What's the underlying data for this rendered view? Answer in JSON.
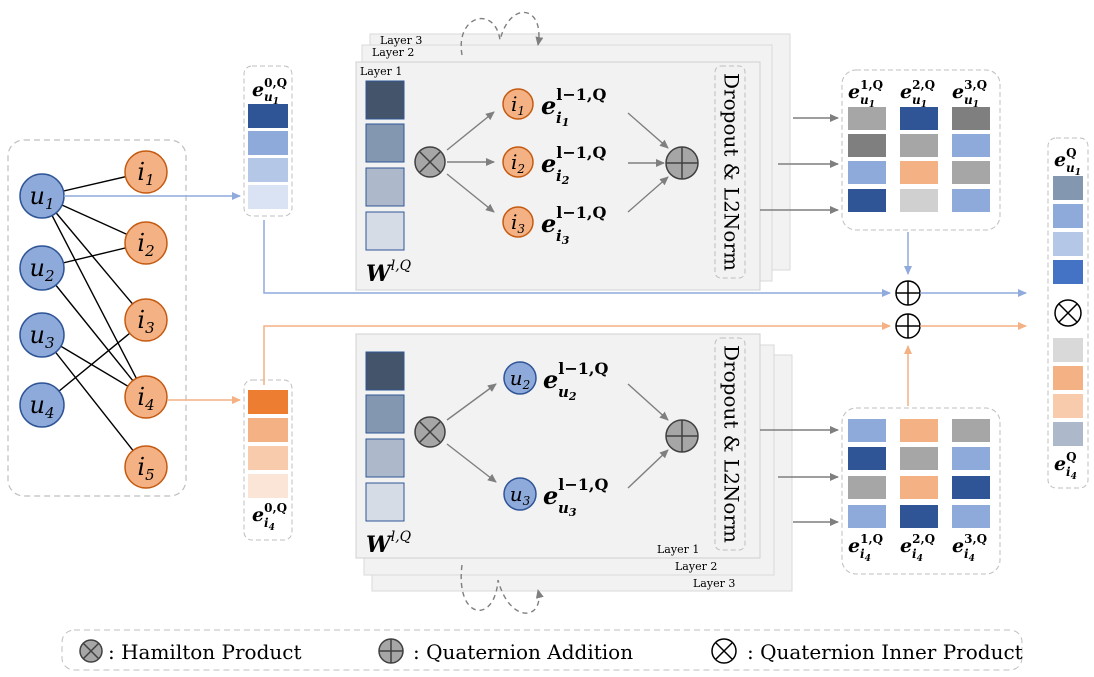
{
  "colors": {
    "user_fill": "#8eaadb",
    "user_stroke": "#2f5597",
    "item_fill": "#f4b183",
    "item_stroke": "#c55a11",
    "blue_line": "#8faadc",
    "orange_line": "#f4b183",
    "gray_line": "#7f7f7f",
    "panel_fill": "#f2f2f2",
    "box_border": "#bfbfbf"
  },
  "graph": {
    "users": [
      {
        "base": "u",
        "sub": "1"
      },
      {
        "base": "u",
        "sub": "2"
      },
      {
        "base": "u",
        "sub": "3"
      },
      {
        "base": "u",
        "sub": "4"
      }
    ],
    "items": [
      {
        "base": "i",
        "sub": "1"
      },
      {
        "base": "i",
        "sub": "2"
      },
      {
        "base": "i",
        "sub": "3"
      },
      {
        "base": "i",
        "sub": "4"
      },
      {
        "base": "i",
        "sub": "5"
      }
    ]
  },
  "embeddings": {
    "user_initial": {
      "base": "e",
      "sup": "0,Q",
      "sub": "u",
      "subsub": "1"
    },
    "item_initial": {
      "base": "e",
      "sup": "0,Q",
      "sub": "i",
      "subsub": "4"
    }
  },
  "top_panel": {
    "layer_labels": [
      "Layer 3",
      "Layer 2",
      "Layer 1"
    ],
    "weight": {
      "base": "W",
      "sup": "l,Q"
    },
    "neighbors": [
      {
        "node": "i",
        "node_sub": "1",
        "emb": "e",
        "emb_sup": "l−1,Q",
        "emb_sub": "i",
        "emb_subsub": "1"
      },
      {
        "node": "i",
        "node_sub": "2",
        "emb": "e",
        "emb_sup": "l−1,Q",
        "emb_sub": "i",
        "emb_subsub": "2"
      },
      {
        "node": "i",
        "node_sub": "3",
        "emb": "e",
        "emb_sup": "l−1,Q",
        "emb_sub": "i",
        "emb_subsub": "3"
      }
    ],
    "side_label": "Dropout & L2Norm"
  },
  "bottom_panel": {
    "layer_labels": [
      "Layer 1",
      "Layer 2",
      "Layer 3"
    ],
    "weight": {
      "base": "W",
      "sup": "l,Q"
    },
    "neighbors": [
      {
        "node": "u",
        "node_sub": "2",
        "emb": "e",
        "emb_sup": "l−1,Q",
        "emb_sub": "u",
        "emb_subsub": "2"
      },
      {
        "node": "u",
        "node_sub": "3",
        "emb": "e",
        "emb_sup": "l−1,Q",
        "emb_sub": "u",
        "emb_subsub": "3"
      }
    ],
    "side_label": "Dropout & L2Norm"
  },
  "user_layer_outputs": [
    {
      "base": "e",
      "sup": "1,Q",
      "sub": "u",
      "subsub": "1"
    },
    {
      "base": "e",
      "sup": "2,Q",
      "sub": "u",
      "subsub": "1"
    },
    {
      "base": "e",
      "sup": "3,Q",
      "sub": "u",
      "subsub": "1"
    }
  ],
  "item_layer_outputs": [
    {
      "base": "e",
      "sup": "1,Q",
      "sub": "i",
      "subsub": "4"
    },
    {
      "base": "e",
      "sup": "2,Q",
      "sub": "i",
      "subsub": "4"
    },
    {
      "base": "e",
      "sup": "3,Q",
      "sub": "i",
      "subsub": "4"
    }
  ],
  "final": {
    "user": {
      "base": "e",
      "sup": "Q",
      "sub": "u",
      "subsub": "1"
    },
    "item": {
      "base": "e",
      "sup": "Q",
      "sub": "i",
      "subsub": "4"
    }
  },
  "legend": {
    "hamilton": ": Hamilton Product",
    "addition": ": Quaternion Addition",
    "inner": ": Quaternion Inner Product"
  }
}
